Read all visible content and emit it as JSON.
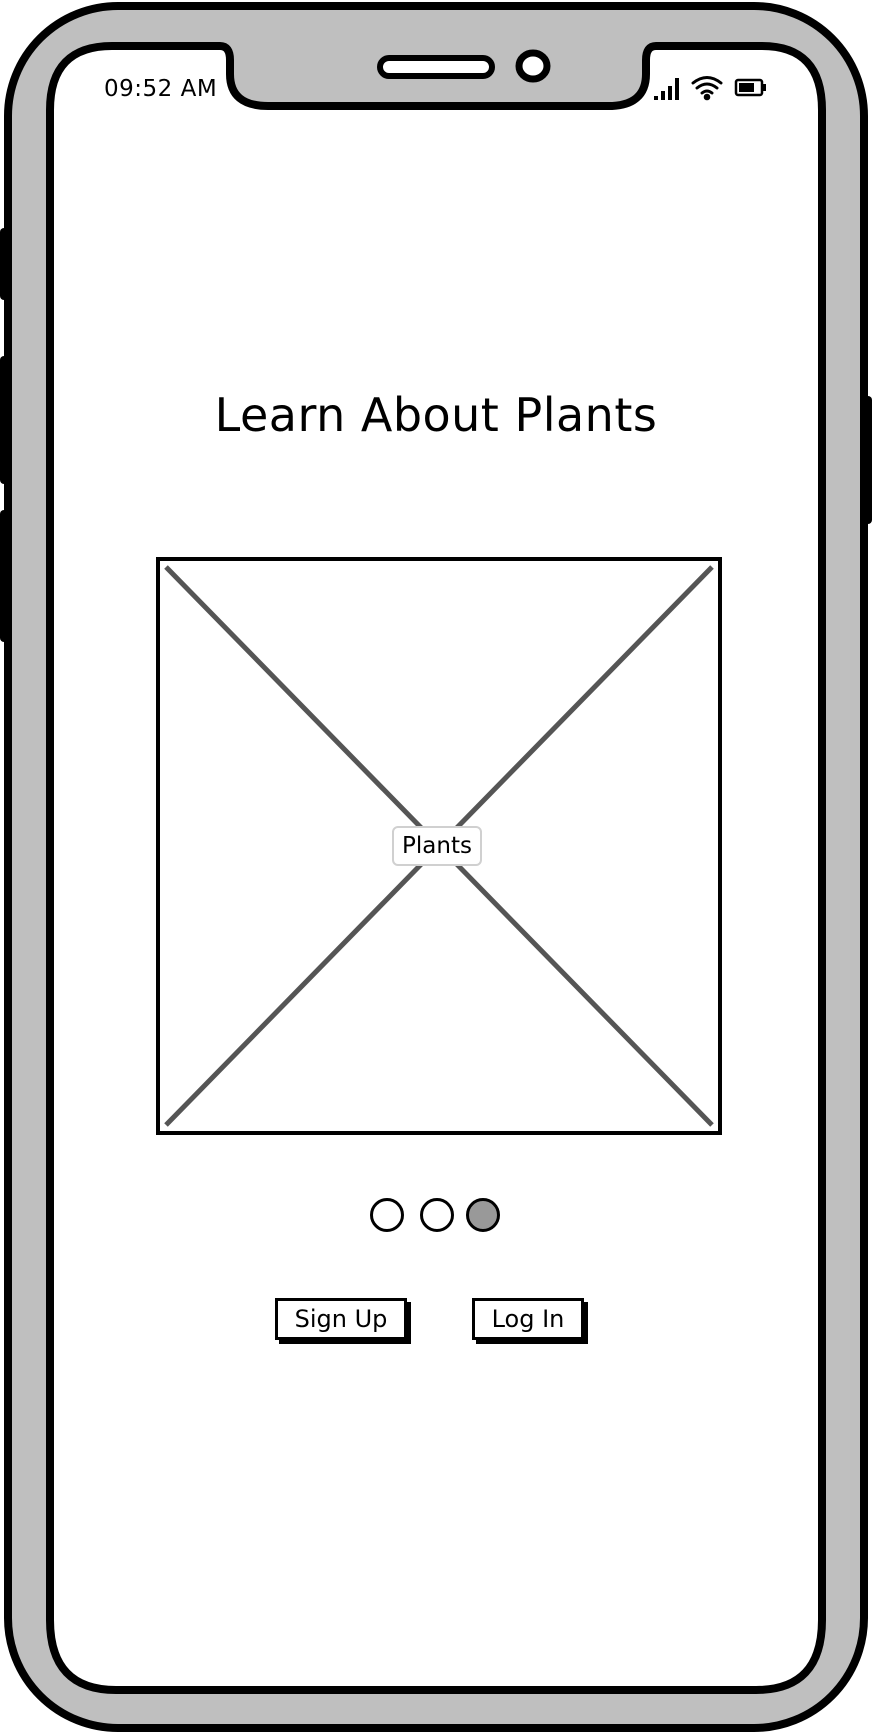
{
  "status_bar": {
    "time": "09:52 AM",
    "icons": [
      "signal-icon",
      "wifi-icon",
      "battery-icon"
    ]
  },
  "screen": {
    "title": "Learn About Plants",
    "image_placeholder_label": "Plants"
  },
  "pager": {
    "total": 3,
    "active_index": 2
  },
  "buttons": {
    "sign_up": "Sign Up",
    "log_in": "Log In"
  },
  "colors": {
    "frame": "#bfbfbf",
    "outline": "#000000",
    "placeholder_cross": "#555555",
    "active_dot": "#999999"
  }
}
